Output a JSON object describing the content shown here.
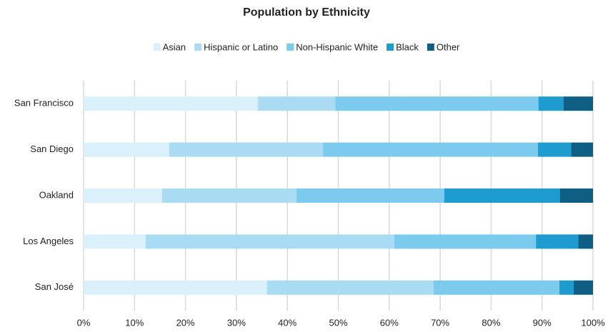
{
  "chart_data": {
    "type": "stacked_barh",
    "title": "Population by Ethnicity",
    "categories": [
      "San Francisco",
      "San Diego",
      "Oakland",
      "Los Angeles",
      "San José"
    ],
    "series": [
      {
        "name": "Asian",
        "color": "#daf0fa",
        "values": [
          34.2,
          16.8,
          15.4,
          12.2,
          36.0
        ]
      },
      {
        "name": "Hispanic or Latino",
        "color": "#a9dcf3",
        "values": [
          15.2,
          30.2,
          26.4,
          48.8,
          32.7
        ]
      },
      {
        "name": "Non-Hispanic White",
        "color": "#7ccaee",
        "values": [
          39.9,
          42.2,
          29.0,
          27.8,
          24.7
        ]
      },
      {
        "name": "Black",
        "color": "#1e9bcf",
        "values": [
          4.9,
          6.5,
          22.7,
          8.3,
          2.8
        ]
      },
      {
        "name": "Other",
        "color": "#0f5f84",
        "values": [
          5.8,
          4.3,
          6.5,
          2.9,
          3.8
        ]
      }
    ],
    "xlim": [
      0,
      100
    ],
    "xticks": [
      {
        "value": 0,
        "label": "0%"
      },
      {
        "value": 10,
        "label": "10%"
      },
      {
        "value": 20,
        "label": "20%"
      },
      {
        "value": 30,
        "label": "30%"
      },
      {
        "value": 40,
        "label": "40%"
      },
      {
        "value": 50,
        "label": "50%"
      },
      {
        "value": 60,
        "label": "60%"
      },
      {
        "value": 70,
        "label": "70%"
      },
      {
        "value": 80,
        "label": "80%"
      },
      {
        "value": 90,
        "label": "90%"
      },
      {
        "value": 100,
        "label": "100%"
      }
    ],
    "grid": true,
    "legend": "top"
  }
}
